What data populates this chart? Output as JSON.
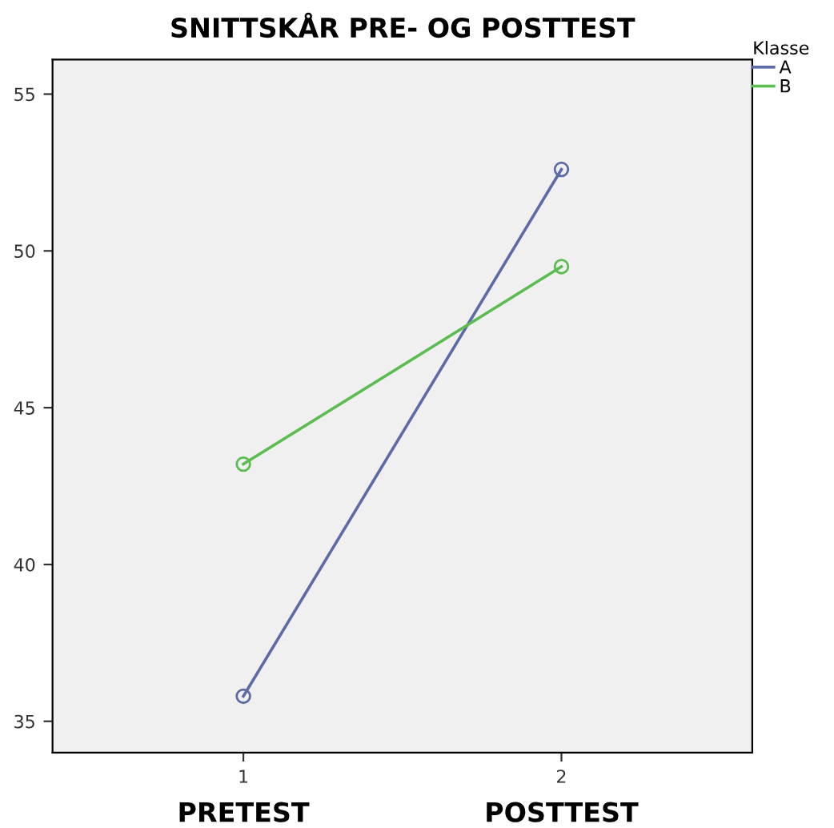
{
  "chart_data": {
    "type": "line",
    "title": "SNITTSKÅR PRE- OG POSTTEST",
    "legend_title": "Klasse",
    "x": [
      1,
      2
    ],
    "series": [
      {
        "name": "A",
        "color": "#5c6aa6",
        "values": [
          35.8,
          52.6
        ]
      },
      {
        "name": "B",
        "color": "#5cbc52",
        "values": [
          43.2,
          49.5
        ]
      }
    ],
    "xlim": [
      0.4,
      2.6
    ],
    "xticks": [
      1,
      2
    ],
    "ylim": [
      34.0,
      56.1
    ],
    "yticks": [
      35,
      40,
      45,
      50,
      55
    ],
    "marker": "circle",
    "line_style": "solid",
    "grid": false,
    "legend": "top right",
    "annotations": [
      "PRETEST",
      "POSTTEST"
    ]
  }
}
